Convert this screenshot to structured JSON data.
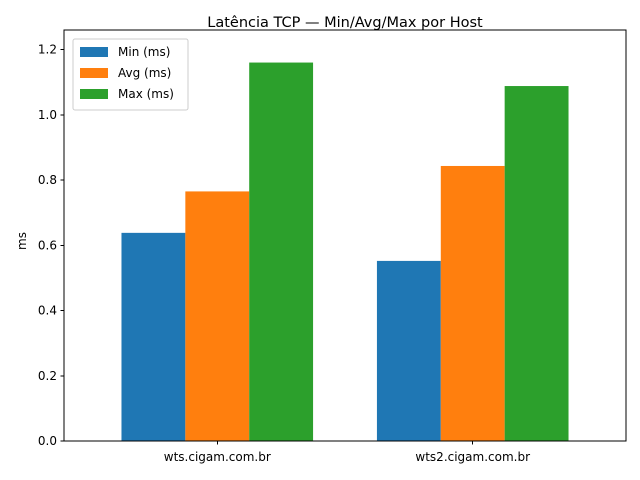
{
  "chart_data": {
    "type": "bar",
    "title": "Latência TCP — Min/Avg/Max por Host",
    "xlabel": "",
    "ylabel": "ms",
    "categories": [
      "wts.cigam.com.br",
      "wts2.cigam.com.br"
    ],
    "series": [
      {
        "name": "Min (ms)",
        "color": "#1f77b4",
        "values": [
          0.638,
          0.552
        ]
      },
      {
        "name": "Avg (ms)",
        "color": "#ff7f0e",
        "values": [
          0.765,
          0.843
        ]
      },
      {
        "name": "Max (ms)",
        "color": "#2ca02c",
        "values": [
          1.16,
          1.088
        ]
      }
    ],
    "ylim": [
      0,
      1.2
    ],
    "yticks": [
      "0.0",
      "0.2",
      "0.4",
      "0.6",
      "0.8",
      "1.0",
      "1.2"
    ],
    "legend_position": "top-left",
    "grid": false
  }
}
